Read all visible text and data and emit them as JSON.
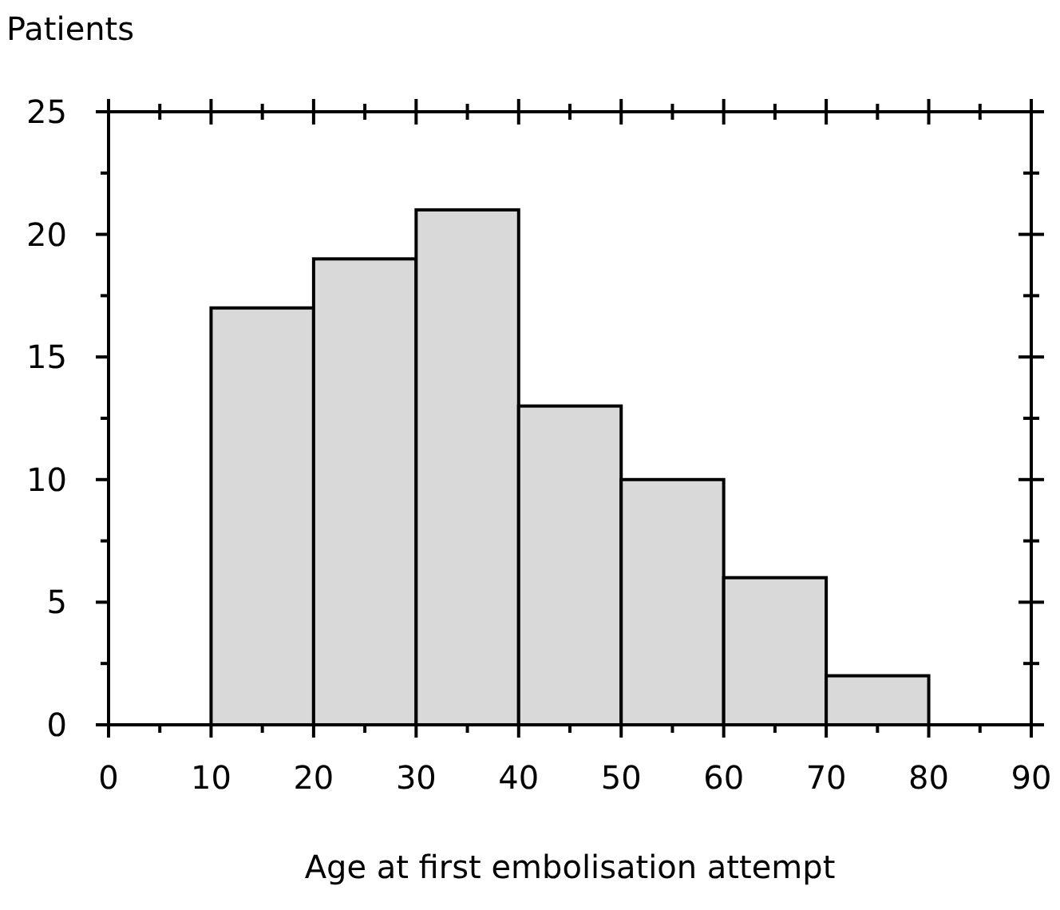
{
  "chart_data": {
    "type": "histogram",
    "xlabel": "Age at first embolisation attempt",
    "ylabel": "Patients",
    "bins": [
      10,
      20,
      30,
      40,
      50,
      60,
      70,
      80
    ],
    "values": [
      17,
      19,
      21,
      13,
      10,
      6,
      2
    ],
    "color": "#d9d9d9",
    "xlim": [
      0,
      90
    ],
    "xticks": [
      0,
      {
        "value": 5,
        "label": null
      },
      10,
      {
        "value": 15,
        "label": null
      },
      20,
      {
        "value": 25,
        "label": null
      },
      30,
      {
        "value": 35,
        "label": null
      },
      40,
      {
        "value": 45,
        "label": null
      },
      50,
      {
        "value": 55,
        "label": null
      },
      60,
      {
        "value": 65,
        "label": null
      },
      70,
      {
        "value": 75,
        "label": null
      },
      80,
      {
        "value": 85,
        "label": null
      },
      90
    ],
    "ylim": [
      0,
      25
    ],
    "yticks": [
      0,
      {
        "value": 2.5,
        "label": null
      },
      5,
      {
        "value": 7.5,
        "label": null
      },
      10,
      {
        "value": 12.5,
        "label": null
      },
      15,
      {
        "value": 17.5,
        "label": null
      },
      20,
      {
        "value": 22.5,
        "label": null
      },
      25
    ],
    "grid": false
  }
}
